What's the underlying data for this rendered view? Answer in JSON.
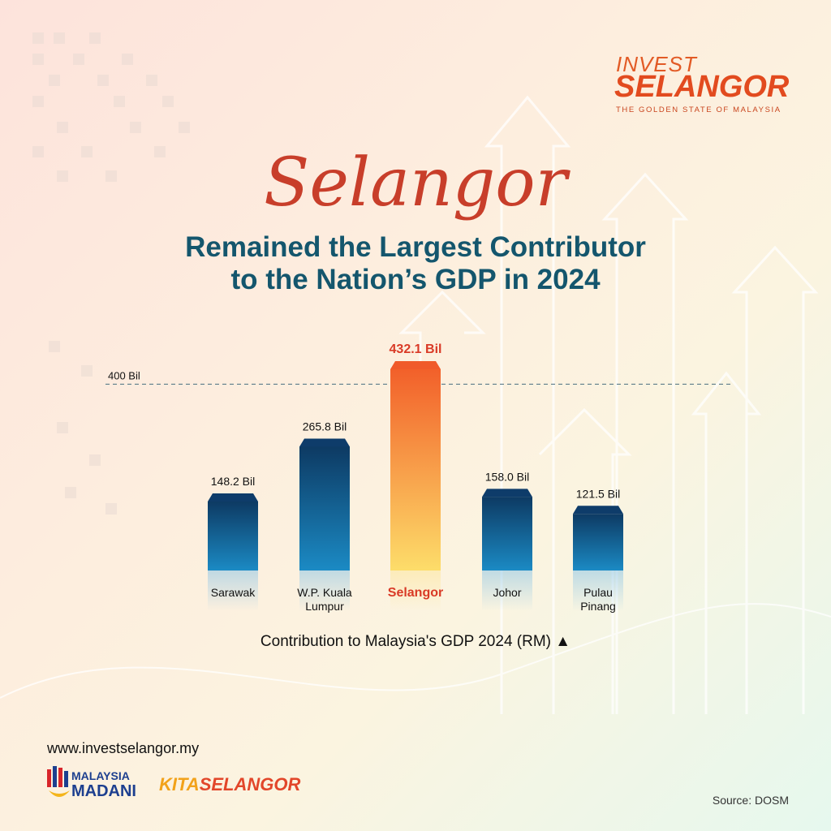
{
  "branding": {
    "invest": "INVEST",
    "selangor": "SELANGOR",
    "tagline": "THE GOLDEN STATE OF MALAYSIA"
  },
  "headline": {
    "script": "Selangor",
    "line1": "Remained the Largest Contributor",
    "line2": "to the Nation’s GDP in 2024"
  },
  "chart_data": {
    "type": "bar",
    "categories": [
      "Sarawak",
      "W.P. Kuala Lumpur",
      "Selangor",
      "Johor",
      "Pulau Pinang"
    ],
    "category_lines": [
      [
        "Sarawak"
      ],
      [
        "W.P. Kuala",
        "Lumpur"
      ],
      [
        "Selangor"
      ],
      [
        "Johor"
      ],
      [
        "Pulau",
        "Pinang"
      ]
    ],
    "values": [
      148.2,
      265.8,
      432.1,
      158.0,
      121.5
    ],
    "value_labels": [
      "148.2 Bil",
      "265.8 Bil",
      "432.1 Bil",
      "158.0 Bil",
      "121.5 Bil"
    ],
    "highlight": "Selangor",
    "reference_line": {
      "value": 400,
      "label": "400 Bil"
    },
    "xlabel": "Contribution to Malaysia's GDP 2024 (RM) ▲",
    "ylim": [
      0,
      432.1
    ],
    "colors": {
      "bar_top": "#0d3a63",
      "bar_bottom": "#1b8ac4",
      "highlight_top": "#f2602a",
      "highlight_bottom": "#fddd6a",
      "highlight_text": "#d93a26"
    }
  },
  "footer": {
    "url": "www.investselangor.my",
    "madani_line1": "MALAYSIA",
    "madani_line2": "MADANI",
    "kita_part1": "KITA",
    "kita_part2": "SELANGOR",
    "source": "Source: DOSM"
  }
}
